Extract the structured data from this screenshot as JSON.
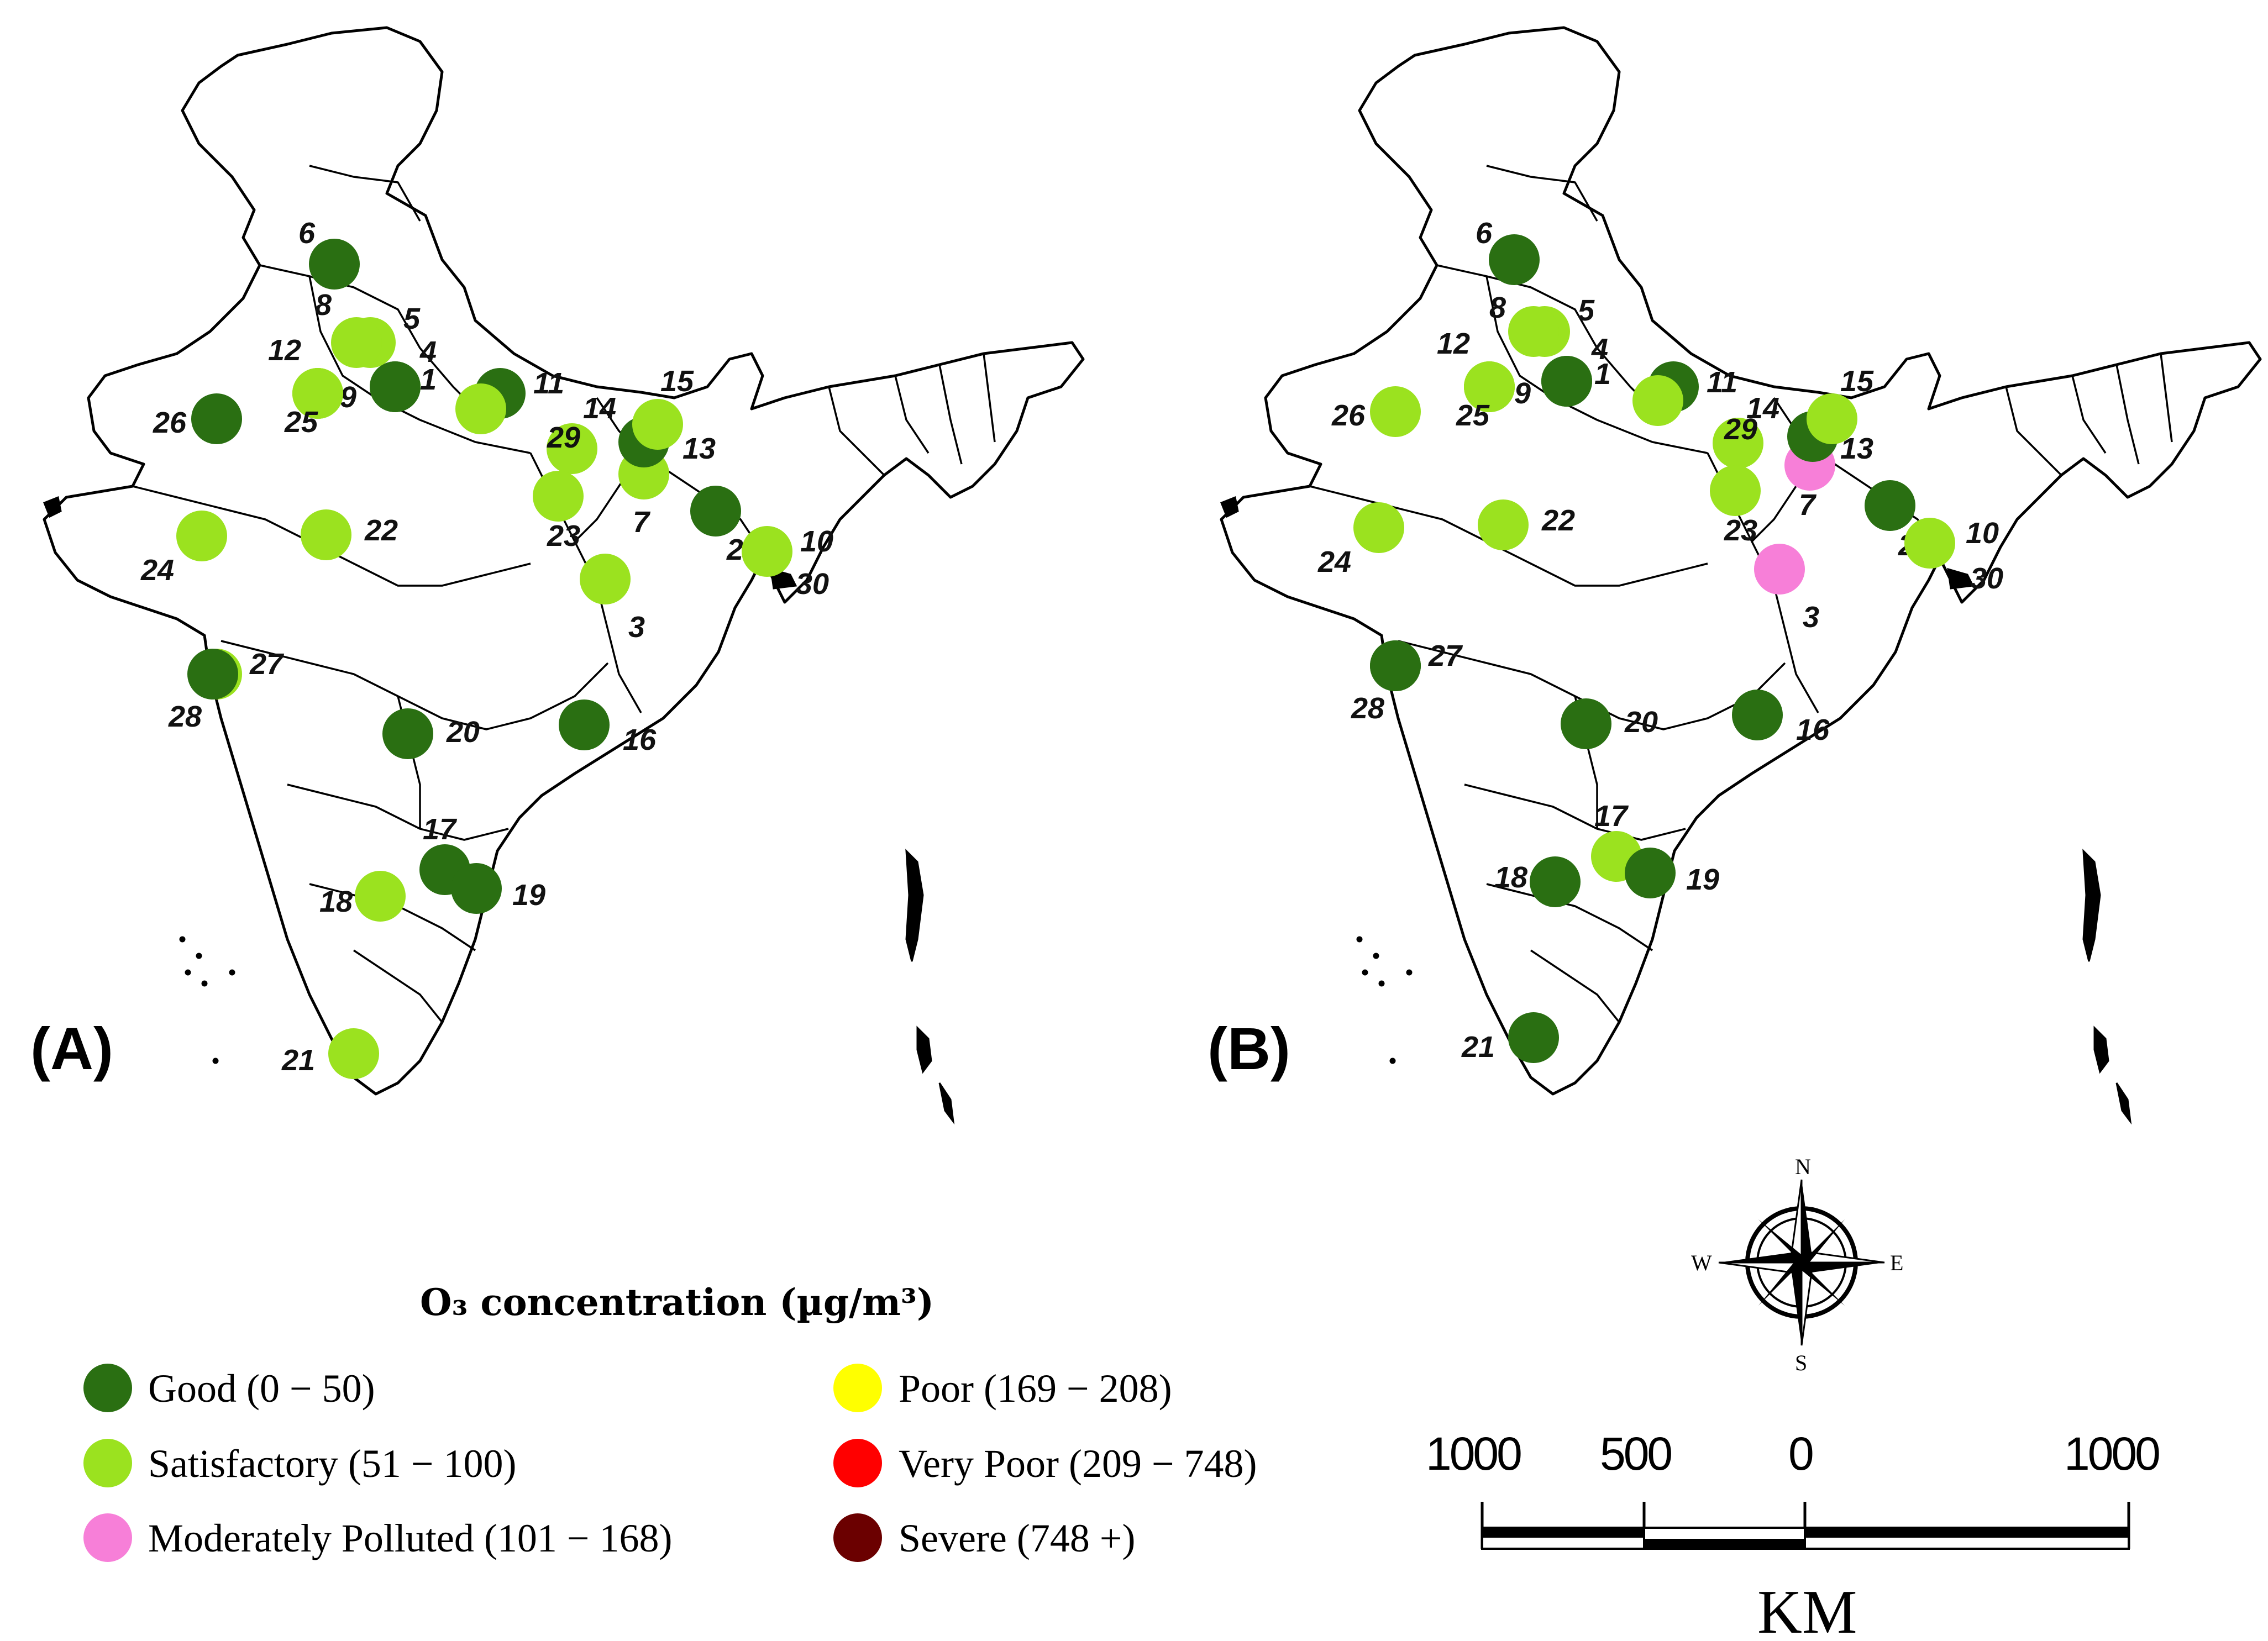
{
  "legend": {
    "title": "O₃ concentration (µg/m³)",
    "items": [
      {
        "label": "Good (0 − 50)",
        "color": "#2a6f12"
      },
      {
        "label": "Satisfactory (51 − 100)",
        "color": "#9be21f"
      },
      {
        "label": "Moderately Polluted (101 − 168)",
        "color": "#f77fd8"
      },
      {
        "label": "Poor (169 − 208)",
        "color": "#ffff00"
      },
      {
        "label": "Very Poor (209 − 748)",
        "color": "#ff0000"
      },
      {
        "label": "Severe (748 +)",
        "color": "#6b0000"
      }
    ]
  },
  "panels": [
    {
      "label": "(A)",
      "stations": [
        {
          "id": "1",
          "status": "good"
        },
        {
          "id": "2",
          "status": "good"
        },
        {
          "id": "3",
          "status": "satisfactory"
        },
        {
          "id": "4",
          "status": "good"
        },
        {
          "id": "5",
          "status": "satisfactory"
        },
        {
          "id": "6",
          "status": "good"
        },
        {
          "id": "7",
          "status": "satisfactory"
        },
        {
          "id": "8",
          "status": "satisfactory"
        },
        {
          "id": "9",
          "status": "satisfactory"
        },
        {
          "id": "10",
          "status": "satisfactory"
        },
        {
          "id": "11",
          "status": "good"
        },
        {
          "id": "12",
          "status": "satisfactory"
        },
        {
          "id": "13",
          "status": "good"
        },
        {
          "id": "14",
          "status": "satisfactory"
        },
        {
          "id": "15",
          "status": "satisfactory"
        },
        {
          "id": "16",
          "status": "good"
        },
        {
          "id": "17",
          "status": "good"
        },
        {
          "id": "18",
          "status": "satisfactory"
        },
        {
          "id": "19",
          "status": "good"
        },
        {
          "id": "20",
          "status": "good"
        },
        {
          "id": "21",
          "status": "satisfactory"
        },
        {
          "id": "22",
          "status": "satisfactory"
        },
        {
          "id": "23",
          "status": "satisfactory"
        },
        {
          "id": "24",
          "status": "satisfactory"
        },
        {
          "id": "25",
          "status": "satisfactory"
        },
        {
          "id": "26",
          "status": "good"
        },
        {
          "id": "27",
          "status": "satisfactory"
        },
        {
          "id": "28",
          "status": "good"
        },
        {
          "id": "29",
          "status": "satisfactory"
        },
        {
          "id": "30",
          "status": "none"
        }
      ]
    },
    {
      "label": "(B)",
      "stations": [
        {
          "id": "1",
          "status": "good"
        },
        {
          "id": "2",
          "status": "good"
        },
        {
          "id": "3",
          "status": "moderate"
        },
        {
          "id": "4",
          "status": "good"
        },
        {
          "id": "5",
          "status": "satisfactory"
        },
        {
          "id": "6",
          "status": "good"
        },
        {
          "id": "7",
          "status": "moderate"
        },
        {
          "id": "8",
          "status": "satisfactory"
        },
        {
          "id": "9",
          "status": "satisfactory"
        },
        {
          "id": "10",
          "status": "satisfactory"
        },
        {
          "id": "11",
          "status": "good"
        },
        {
          "id": "12",
          "status": "satisfactory"
        },
        {
          "id": "13",
          "status": "good"
        },
        {
          "id": "14",
          "status": "satisfactory"
        },
        {
          "id": "15",
          "status": "satisfactory"
        },
        {
          "id": "16",
          "status": "good"
        },
        {
          "id": "17",
          "status": "satisfactory"
        },
        {
          "id": "18",
          "status": "good"
        },
        {
          "id": "19",
          "status": "good"
        },
        {
          "id": "20",
          "status": "good"
        },
        {
          "id": "21",
          "status": "good"
        },
        {
          "id": "22",
          "status": "satisfactory"
        },
        {
          "id": "23",
          "status": "satisfactory"
        },
        {
          "id": "24",
          "status": "satisfactory"
        },
        {
          "id": "25",
          "status": "satisfactory"
        },
        {
          "id": "26",
          "status": "satisfactory"
        },
        {
          "id": "27",
          "status": "good"
        },
        {
          "id": "28",
          "status": "good"
        },
        {
          "id": "29",
          "status": "satisfactory"
        },
        {
          "id": "30",
          "status": "none"
        }
      ]
    }
  ],
  "status_colors": {
    "good": "#2a6f12",
    "satisfactory": "#9be21f",
    "moderate": "#f77fd8"
  },
  "scale_bar": {
    "labels": [
      "1000",
      "500",
      "0",
      "1000"
    ],
    "unit": "KM"
  },
  "compass": {
    "n": "N",
    "s": "S",
    "e": "E",
    "w": "W"
  }
}
